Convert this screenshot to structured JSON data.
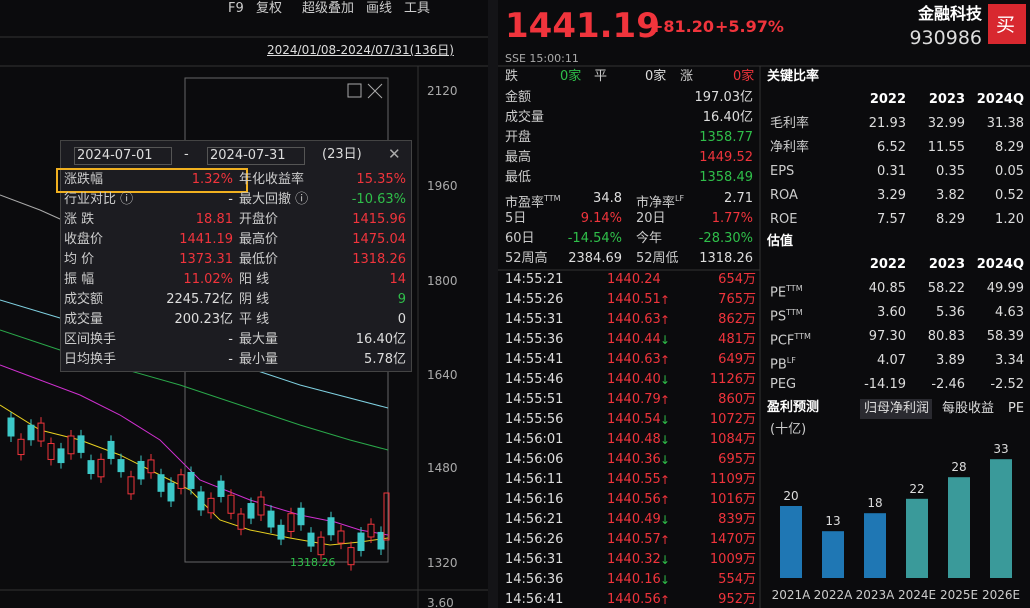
{
  "toolbar": {
    "items": [
      "F9",
      "复权",
      "超级叠加",
      "画线",
      "工具"
    ]
  },
  "chart_panel": {
    "date_range": "2024/01/08-2024/07/31(136日)",
    "price_axis": [
      "2120",
      "1960",
      "1800",
      "1640",
      "1480",
      "1320"
    ],
    "volume_axis": "3.60",
    "low_marker": "1318.26"
  },
  "interval_panel": {
    "start_date": "2024-07-01",
    "separator": "-",
    "end_date": "2024-07-31",
    "days": "(23日)",
    "left": [
      {
        "label": "涨跌幅",
        "value": "1.32%",
        "tone": "up"
      },
      {
        "label": "行业对比 ⓘ",
        "value": "-"
      },
      {
        "label": "涨 跌",
        "value": "18.81",
        "tone": "up"
      },
      {
        "label": "收盘价",
        "value": "1441.19",
        "tone": "up"
      },
      {
        "label": "均 价",
        "value": "1373.31",
        "tone": "up"
      },
      {
        "label": "振 幅",
        "value": "11.02%",
        "tone": "up"
      },
      {
        "label": "成交额",
        "value": "2245.72亿"
      },
      {
        "label": "成交量",
        "value": "200.23亿"
      },
      {
        "label": "区间换手",
        "value": "-"
      },
      {
        "label": "日均换手",
        "value": "-"
      }
    ],
    "right": [
      {
        "label": "年化收益率",
        "value": "15.35%",
        "tone": "up"
      },
      {
        "label": "最大回撤 ⓘ",
        "value": "-10.63%",
        "tone": "down"
      },
      {
        "label": "开盘价",
        "value": "1415.96",
        "tone": "up"
      },
      {
        "label": "最高价",
        "value": "1475.04",
        "tone": "up"
      },
      {
        "label": "最低价",
        "value": "1318.26",
        "tone": "up"
      },
      {
        "label": "阳 线",
        "value": "14",
        "tone": "up"
      },
      {
        "label": "阴 线",
        "value": "9",
        "tone": "down"
      },
      {
        "label": "平 线",
        "value": "0"
      },
      {
        "label": "最大量",
        "value": "16.40亿"
      },
      {
        "label": "最小量",
        "value": "5.78亿"
      }
    ]
  },
  "quote": {
    "price": "1441.19",
    "change": "+81.20",
    "change_pct": "+5.97%",
    "name": "金融科技",
    "code": "930986",
    "buy": "买",
    "exchange_time": "SSE 15:00:11",
    "breadth": [
      {
        "label": "跌",
        "value": "0家",
        "tone": "down"
      },
      {
        "label": "平",
        "value": "0家"
      },
      {
        "label": "涨",
        "value": "0家",
        "tone": "up"
      }
    ],
    "rows": [
      {
        "label": "金额",
        "value": "197.03亿"
      },
      {
        "label": "成交量",
        "value": "16.40亿"
      },
      {
        "label": "开盘",
        "value": "1358.77",
        "tone": "down"
      },
      {
        "label": "最高",
        "value": "1449.52",
        "tone": "up"
      },
      {
        "label": "最低",
        "value": "1358.49",
        "tone": "down"
      }
    ],
    "pairs": [
      [
        {
          "label": "市盈率",
          "sup": "TTM",
          "value": "34.8"
        },
        {
          "label": "市净率",
          "sup": "LF",
          "value": "2.71"
        }
      ],
      [
        {
          "label": "5日",
          "value": "9.14%",
          "tone": "up"
        },
        {
          "label": "20日",
          "value": "1.77%",
          "tone": "up"
        }
      ],
      [
        {
          "label": "60日",
          "value": "-14.54%",
          "tone": "down"
        },
        {
          "label": "今年",
          "value": "-28.30%",
          "tone": "down"
        }
      ],
      [
        {
          "label": "52周高",
          "value": "2384.69"
        },
        {
          "label": "52周低",
          "value": "1318.26"
        }
      ]
    ]
  },
  "ticks": [
    {
      "time": "14:55:21",
      "price": "1440.24",
      "arrow": null,
      "volume": "654万"
    },
    {
      "time": "14:55:26",
      "price": "1440.51",
      "arrow": "↑",
      "volume": "765万"
    },
    {
      "time": "14:55:31",
      "price": "1440.63",
      "arrow": "↑",
      "volume": "862万"
    },
    {
      "time": "14:55:36",
      "price": "1440.44",
      "arrow": "↓",
      "volume": "481万"
    },
    {
      "time": "14:55:41",
      "price": "1440.63",
      "arrow": "↑",
      "volume": "649万"
    },
    {
      "time": "14:55:46",
      "price": "1440.40",
      "arrow": "↓",
      "volume": "1126万"
    },
    {
      "time": "14:55:51",
      "price": "1440.79",
      "arrow": "↑",
      "volume": "860万"
    },
    {
      "time": "14:55:56",
      "price": "1440.54",
      "arrow": "↓",
      "volume": "1072万"
    },
    {
      "time": "14:56:01",
      "price": "1440.48",
      "arrow": "↓",
      "volume": "1084万"
    },
    {
      "time": "14:56:06",
      "price": "1440.36",
      "arrow": "↓",
      "volume": "695万"
    },
    {
      "time": "14:56:11",
      "price": "1440.55",
      "arrow": "↑",
      "volume": "1109万"
    },
    {
      "time": "14:56:16",
      "price": "1440.56",
      "arrow": "↑",
      "volume": "1016万"
    },
    {
      "time": "14:56:21",
      "price": "1440.49",
      "arrow": "↓",
      "volume": "839万"
    },
    {
      "time": "14:56:26",
      "price": "1440.57",
      "arrow": "↑",
      "volume": "1470万"
    },
    {
      "time": "14:56:31",
      "price": "1440.32",
      "arrow": "↓",
      "volume": "1009万"
    },
    {
      "time": "14:56:36",
      "price": "1440.16",
      "arrow": "↓",
      "volume": "554万"
    },
    {
      "time": "14:56:41",
      "price": "1440.56",
      "arrow": "↑",
      "volume": "952万"
    }
  ],
  "ratios": {
    "title": "关键比率",
    "years": [
      "2022",
      "2023",
      "2024Q"
    ],
    "rows": [
      {
        "label": "毛利率",
        "values": [
          "21.93",
          "32.99",
          "31.38"
        ]
      },
      {
        "label": "净利率",
        "values": [
          "6.52",
          "11.55",
          "8.29"
        ]
      },
      {
        "label": "EPS",
        "values": [
          "0.31",
          "0.35",
          "0.05"
        ]
      },
      {
        "label": "ROA",
        "values": [
          "3.29",
          "3.82",
          "0.52"
        ]
      },
      {
        "label": "ROE",
        "values": [
          "7.57",
          "8.29",
          "1.20"
        ]
      }
    ]
  },
  "valuation": {
    "title": "估值",
    "years": [
      "2022",
      "2023",
      "2024Q"
    ],
    "rows": [
      {
        "label": "PE",
        "sup": "TTM",
        "values": [
          "40.85",
          "58.22",
          "49.99"
        ]
      },
      {
        "label": "PS",
        "sup": "TTM",
        "values": [
          "3.60",
          "5.36",
          "4.63"
        ]
      },
      {
        "label": "PCF",
        "sup": "TTM",
        "values": [
          "97.30",
          "80.83",
          "58.39"
        ]
      },
      {
        "label": "PB",
        "sup": "LF",
        "values": [
          "4.07",
          "3.89",
          "3.34"
        ]
      },
      {
        "label": "PEG",
        "values": [
          "-14.19",
          "-2.46",
          "-2.52"
        ]
      }
    ]
  },
  "forecast": {
    "title": "盈利预测",
    "tabs": [
      "归母净利润",
      "每股收益",
      "PE"
    ],
    "unit": "(十亿)",
    "chart_data": {
      "type": "bar",
      "categories": [
        "2021A",
        "2022A",
        "2023A",
        "2024E",
        "2025E",
        "2026E"
      ],
      "values": [
        20,
        13,
        18,
        22,
        28,
        33
      ],
      "colors": [
        "#1f77b4",
        "#1f77b4",
        "#1f77b4",
        "#3a9a9a",
        "#3a9a9a",
        "#3a9a9a"
      ]
    }
  }
}
